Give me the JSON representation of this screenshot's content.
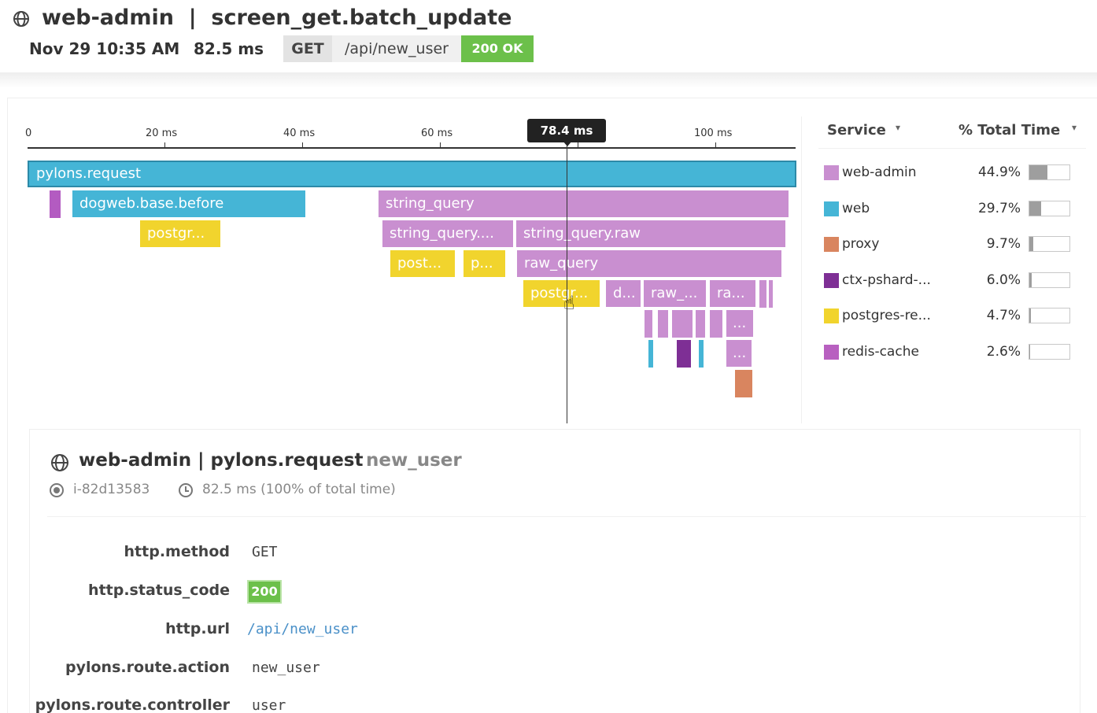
{
  "header": {
    "title": "web-admin  |  screen_get.batch_update",
    "date": "Nov 29 10:35 AM",
    "duration": "82.5 ms",
    "method": "GET",
    "path": "/api/new_user",
    "status": "200 OK"
  },
  "flame": {
    "ticks": [
      "0",
      "20 ms",
      "40 ms",
      "60 ms",
      "100 ms"
    ],
    "cursor_label": "78.4 ms",
    "spans": {
      "root": "pylons.request",
      "dogweb": "dogweb.base.before",
      "string_query": "string_query",
      "postgres_1": "postgr...",
      "string_query_trunc": "string_query....",
      "string_query_raw": "string_query.raw",
      "post_1": "post...",
      "p_1": "p...",
      "raw_query": "raw_query",
      "postgres_2": "postgr...",
      "d_1": "d...",
      "raw_trunc": "raw_...",
      "ra_trunc": "ra...",
      "ellipsis_1": "...",
      "ellipsis_2": "..."
    }
  },
  "services": {
    "header_service": "Service",
    "header_total": "% Total Time",
    "caret": "▾",
    "items": [
      {
        "name": "web-admin",
        "pct": "44.9%",
        "color": "#c98fd0",
        "fraction": 0.449
      },
      {
        "name": "web",
        "pct": "29.7%",
        "color": "#45b5d6",
        "fraction": 0.297
      },
      {
        "name": "proxy",
        "pct": "9.7%",
        "color": "#d9855f",
        "fraction": 0.097
      },
      {
        "name": "ctx-pshard-...",
        "pct": "6.0%",
        "color": "#7e2f95",
        "fraction": 0.06
      },
      {
        "name": "postgres-re...",
        "pct": "4.7%",
        "color": "#f1d42d",
        "fraction": 0.047
      },
      {
        "name": "redis-cache",
        "pct": "2.6%",
        "color": "#b860c0",
        "fraction": 0.026
      }
    ]
  },
  "details": {
    "title": "web-admin | pylons.request",
    "resource": "new_user",
    "host": "i-82d13583",
    "time": "82.5 ms (100% of total time)",
    "tags": [
      {
        "key": "http.method",
        "value": "GET"
      },
      {
        "key": "http.status_code",
        "value": "200"
      },
      {
        "key": "http.url",
        "value": "/api/new_user"
      },
      {
        "key": "pylons.route.action",
        "value": "new_user"
      },
      {
        "key": "pylons.route.controller",
        "value": "user"
      }
    ]
  }
}
